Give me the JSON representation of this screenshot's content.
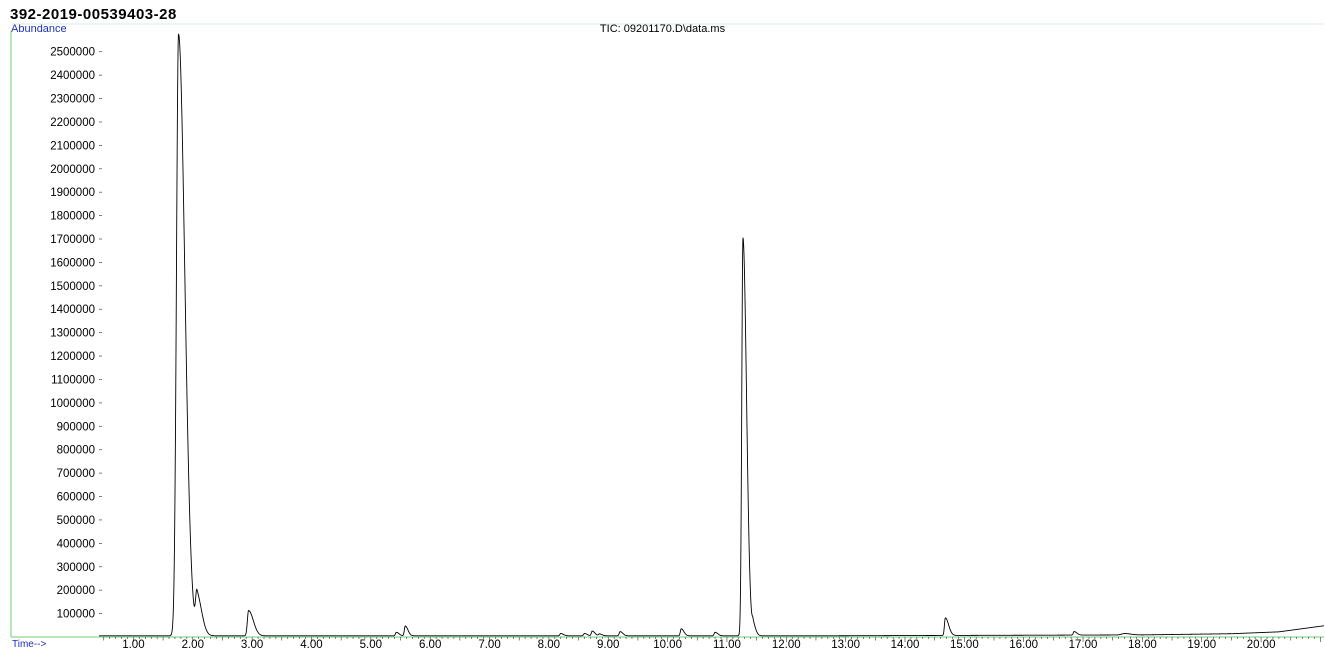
{
  "header": {
    "sample_id": "392-2019-00539403-28",
    "y_axis_label": "Abundance",
    "x_axis_label": "Time-->"
  },
  "chart_data": {
    "type": "line",
    "title": "TIC: 09201170.D\\data.ms",
    "xlabel": "Time-->",
    "ylabel": "Abundance",
    "x_ticks": [
      "1.00",
      "2.00",
      "3.00",
      "4.00",
      "5.00",
      "6.00",
      "7.00",
      "8.00",
      "9.00",
      "10.00",
      "11.00",
      "12.00",
      "13.00",
      "14.00",
      "15.00",
      "16.00",
      "17.00",
      "18.00",
      "19.00",
      "20.00"
    ],
    "y_ticks": [
      "100000",
      "200000",
      "300000",
      "400000",
      "500000",
      "600000",
      "700000",
      "800000",
      "900000",
      "1000000",
      "1100000",
      "1200000",
      "1300000",
      "1400000",
      "1500000",
      "1600000",
      "1700000",
      "1800000",
      "1900000",
      "2000000",
      "2100000",
      "2200000",
      "2300000",
      "2400000",
      "2500000"
    ],
    "xlim": [
      0.42,
      21.06
    ],
    "ylim": [
      0,
      2580000
    ],
    "grid": false,
    "line_color": "#000000",
    "axis_color": "#6fcf6f",
    "baseline": 5000,
    "peaks": [
      {
        "rt": 1.76,
        "height": 2570000,
        "width": 0.035,
        "tail": 0.07
      },
      {
        "rt": 2.07,
        "height": 165000,
        "width": 0.022,
        "tail": 0.06
      },
      {
        "rt": 2.94,
        "height": 108000,
        "width": 0.02,
        "tail": 0.06
      },
      {
        "rt": 5.43,
        "height": 15000,
        "width": 0.015,
        "tail": 0.03
      },
      {
        "rt": 5.58,
        "height": 42000,
        "width": 0.015,
        "tail": 0.03
      },
      {
        "rt": 8.2,
        "height": 10000,
        "width": 0.015,
        "tail": 0.03
      },
      {
        "rt": 8.6,
        "height": 10000,
        "width": 0.015,
        "tail": 0.03
      },
      {
        "rt": 8.73,
        "height": 20000,
        "width": 0.015,
        "tail": 0.03
      },
      {
        "rt": 8.85,
        "height": 8000,
        "width": 0.015,
        "tail": 0.03
      },
      {
        "rt": 9.2,
        "height": 18000,
        "width": 0.015,
        "tail": 0.03
      },
      {
        "rt": 10.23,
        "height": 30000,
        "width": 0.015,
        "tail": 0.03
      },
      {
        "rt": 10.8,
        "height": 15000,
        "width": 0.015,
        "tail": 0.03
      },
      {
        "rt": 11.27,
        "height": 1700000,
        "width": 0.02,
        "tail": 0.04
      },
      {
        "rt": 11.44,
        "height": 45000,
        "width": 0.015,
        "tail": 0.03
      },
      {
        "rt": 14.68,
        "height": 75000,
        "width": 0.015,
        "tail": 0.04
      },
      {
        "rt": 16.85,
        "height": 15000,
        "width": 0.015,
        "tail": 0.03
      },
      {
        "rt": 17.7,
        "height": 6000,
        "width": 0.05,
        "tail": 0.05
      }
    ],
    "baseline_drift": [
      {
        "x": 12.5,
        "y": 5000
      },
      {
        "x": 18.0,
        "y": 9000
      },
      {
        "x": 19.5,
        "y": 14000
      },
      {
        "x": 20.3,
        "y": 22000
      },
      {
        "x": 21.06,
        "y": 48000
      }
    ]
  }
}
